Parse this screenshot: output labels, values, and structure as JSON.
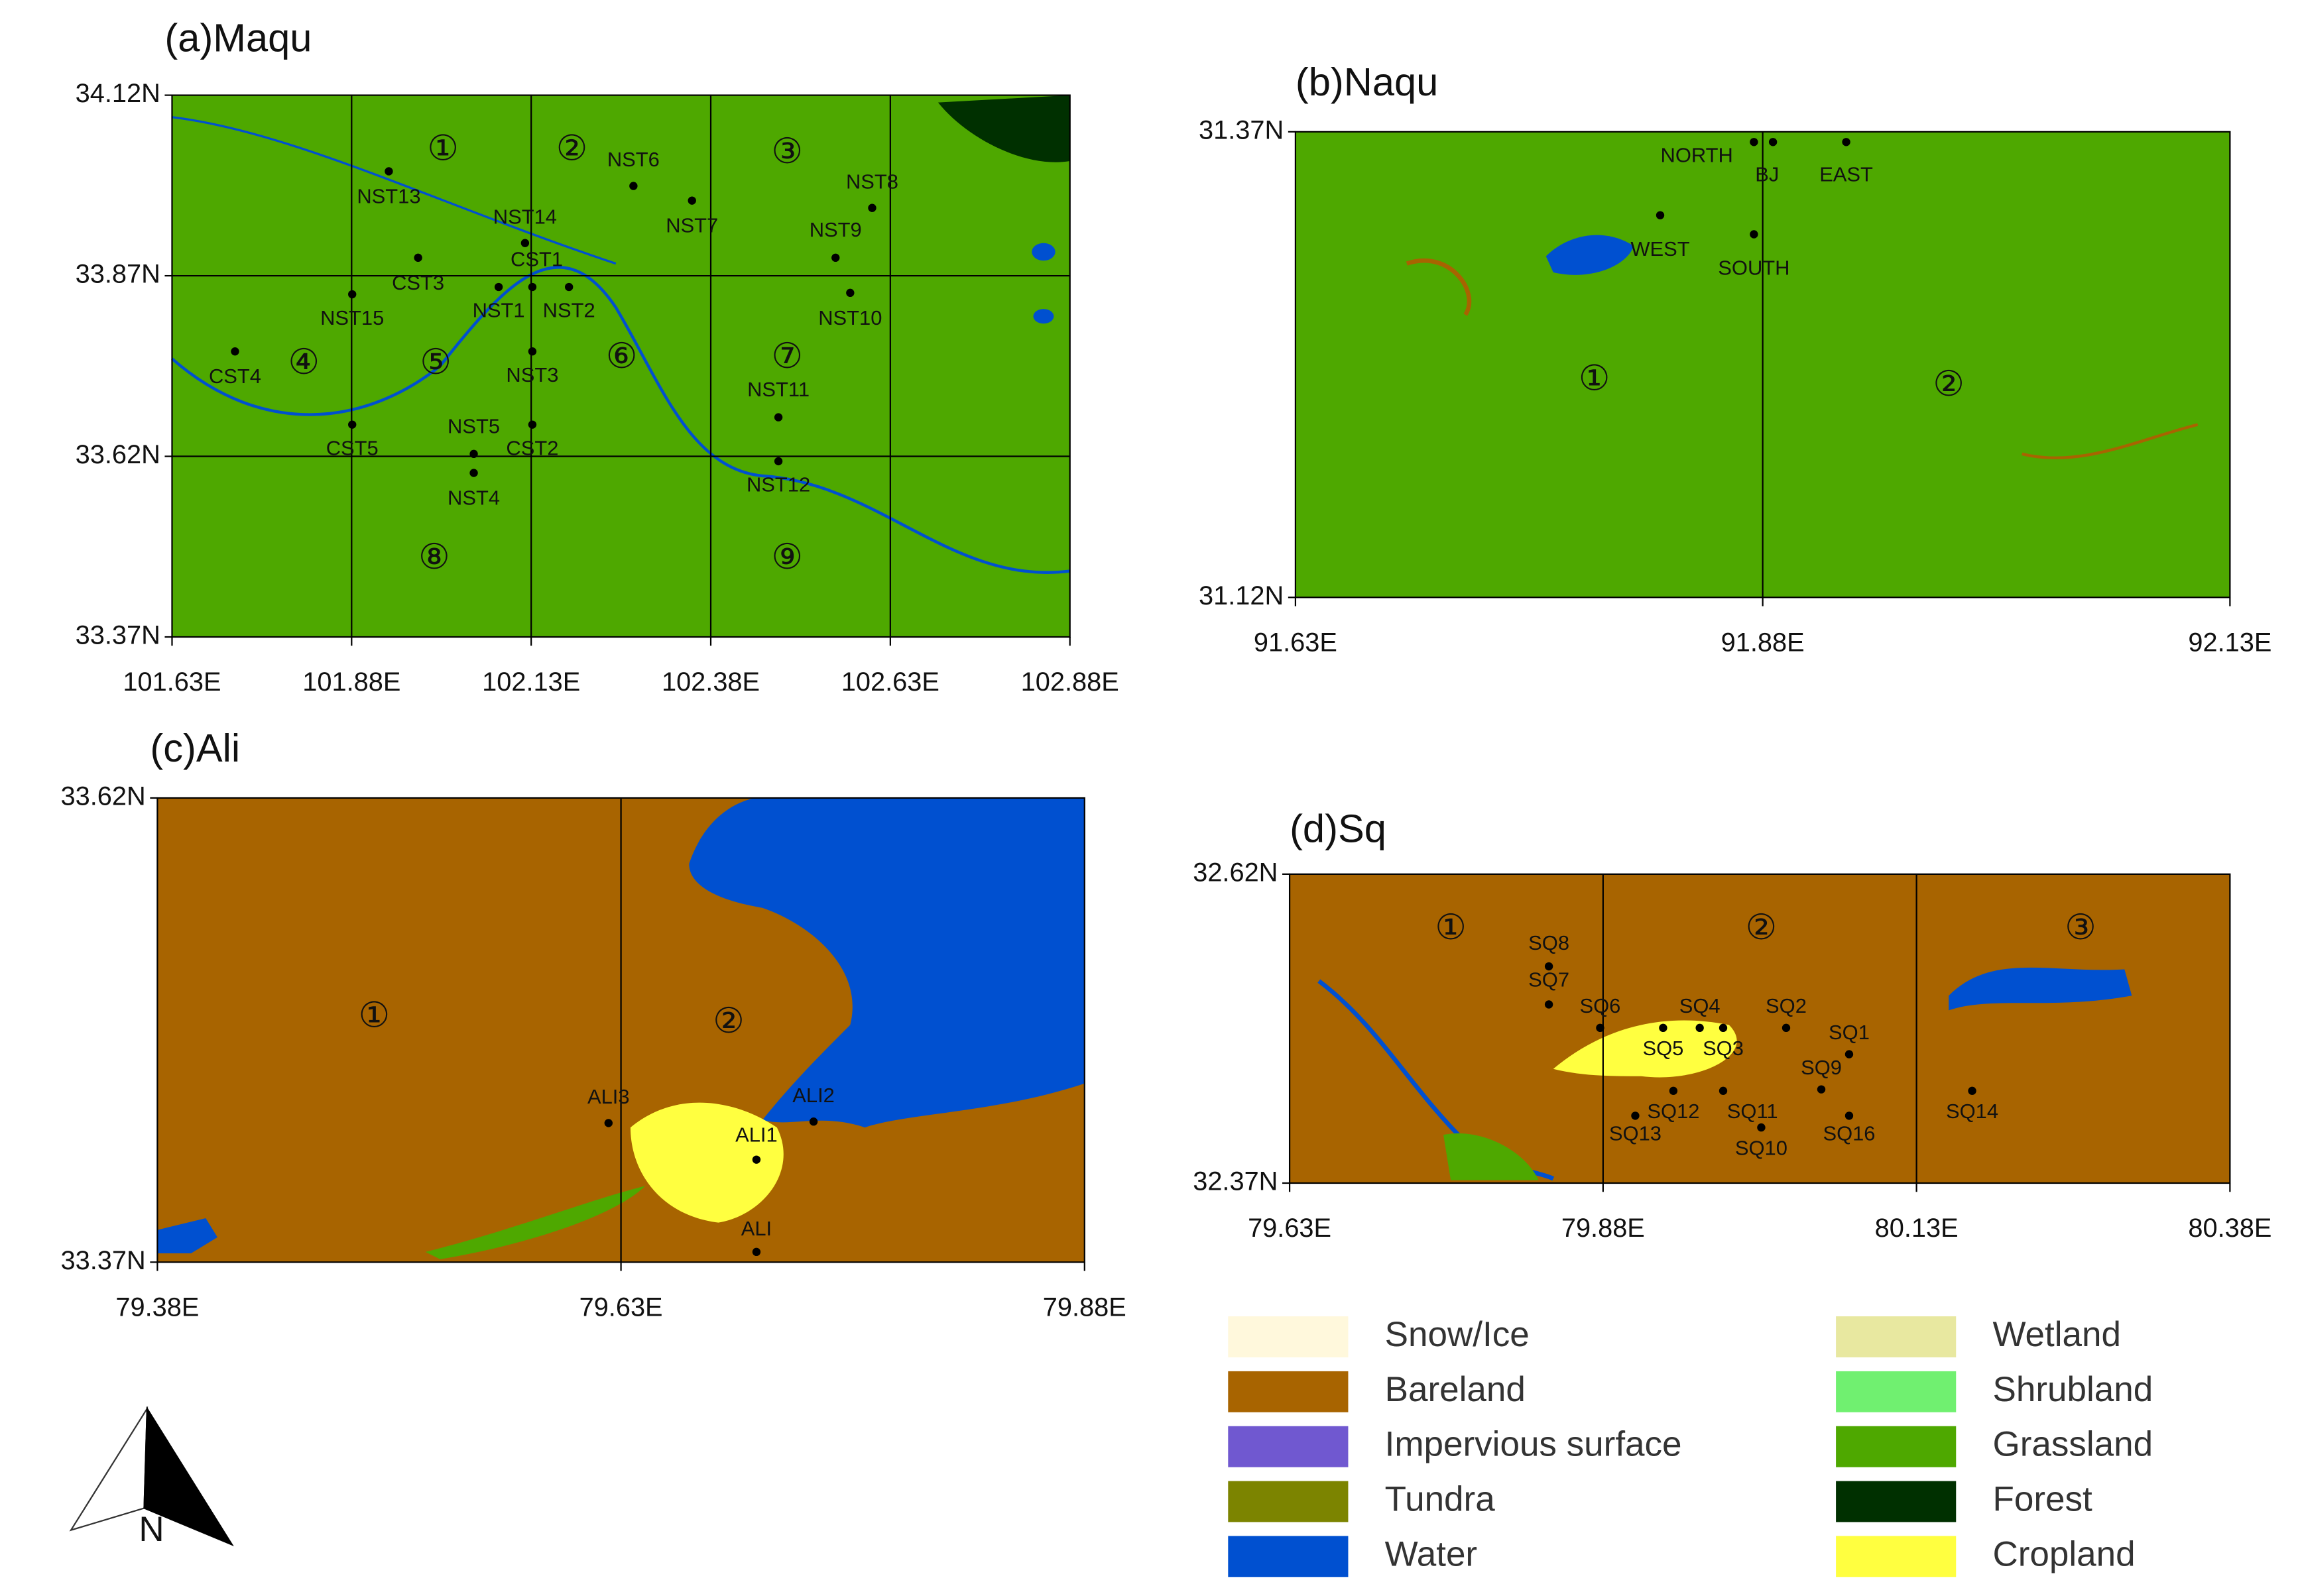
{
  "panels": [
    {
      "title": "(a)Maqu",
      "lat_labels": [
        "34.12N",
        "33.87N",
        "33.62N",
        "33.37N"
      ],
      "lon_labels": [
        "101.63E",
        "101.88E",
        "102.13E",
        "102.38E",
        "102.63E",
        "102.88E"
      ],
      "cells": [
        "①",
        "②",
        "③",
        "④",
        "⑤",
        "⑥",
        "⑦",
        "⑧",
        "⑨"
      ],
      "stations": [
        "NST13",
        "NST6",
        "NST14",
        "NST7",
        "NST8",
        "CST3",
        "CST1",
        "NST9",
        "NST15",
        "NST1",
        "NST2",
        "NST10",
        "CST4",
        "NST3",
        "NST11",
        "NST5",
        "CST2",
        "CST5",
        "NST4",
        "NST12"
      ]
    },
    {
      "title": "(b)Naqu",
      "lat_labels": [
        "31.37N",
        "31.12N"
      ],
      "lon_labels": [
        "91.63E",
        "91.88E",
        "92.13E"
      ],
      "cells": [
        "①",
        "②"
      ],
      "stations": [
        "NORTH",
        "BJ",
        "EAST",
        "WEST",
        "SOUTH"
      ]
    },
    {
      "title": "(c)Ali",
      "lat_labels": [
        "33.62N",
        "33.37N"
      ],
      "lon_labels": [
        "79.38E",
        "79.63E",
        "79.88E"
      ],
      "cells": [
        "①",
        "②"
      ],
      "stations": [
        "ALI3",
        "ALI2",
        "ALI1",
        "ALI"
      ]
    },
    {
      "title": "(d)Sq",
      "lat_labels": [
        "32.62N",
        "32.37N"
      ],
      "lon_labels": [
        "79.63E",
        "79.88E",
        "80.13E",
        "80.38E"
      ],
      "cells": [
        "①",
        "②",
        "③"
      ],
      "stations": [
        "SQ8",
        "SQ7",
        "SQ6",
        "SQ4",
        "SQ2",
        "SQ5",
        "SQ3",
        "SQ1",
        "SQ9",
        "SQ12",
        "SQ11",
        "SQ13",
        "SQ10",
        "SQ16",
        "SQ14"
      ]
    }
  ],
  "legend": [
    {
      "label": "Snow/Ice",
      "color": "#fff8dc"
    },
    {
      "label": "Bareland",
      "color": "#a86400"
    },
    {
      "label": "Impervious surface",
      "color": "#7058d0"
    },
    {
      "label": "Tundra",
      "color": "#7c8400"
    },
    {
      "label": "Water",
      "color": "#0050d0"
    },
    {
      "label": "Wetland",
      "color": "#e8e8a0"
    },
    {
      "label": "Shrubland",
      "color": "#70f070"
    },
    {
      "label": "Grassland",
      "color": "#4ea800"
    },
    {
      "label": "Forest",
      "color": "#003000"
    },
    {
      "label": "Cropland",
      "color": "#ffff40"
    }
  ],
  "north": "N"
}
